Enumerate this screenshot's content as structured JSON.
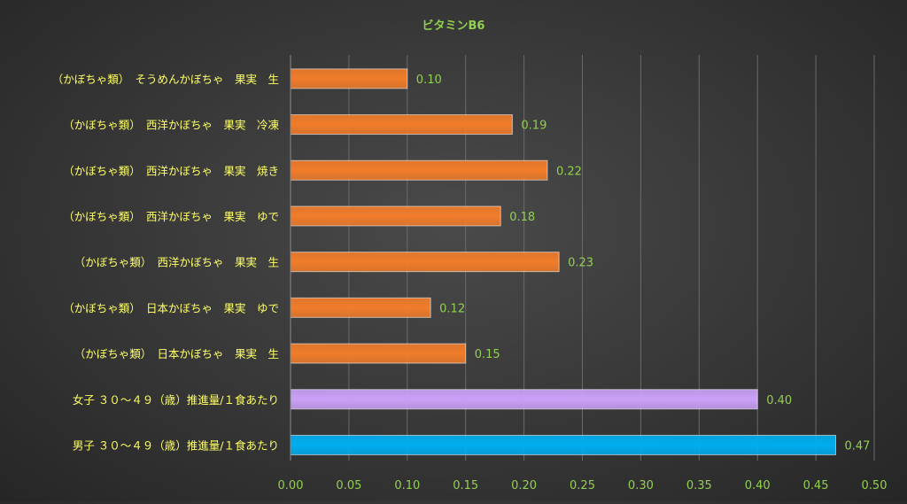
{
  "chart_data": {
    "type": "bar",
    "orientation": "horizontal",
    "title": "ビタミンB6",
    "categories": [
      "（かぼちゃ類）　そうめんかぼちゃ　果実　生",
      "（かぼちゃ類）　西洋かぼちゃ　果実　冷凍",
      "（かぼちゃ類）　西洋かぼちゃ　果実　焼き",
      "（かぼちゃ類）　西洋かぼちゃ　果実　ゆで",
      "（かぼちゃ類）　西洋かぼちゃ　果実　生",
      "（かぼちゃ類）　日本かぼちゃ　果実　ゆで",
      "（かぼちゃ類）　日本かぼちゃ　果実　生",
      "女子 ３０～４９（歳）推進量/１食あたり",
      "男子 ３０～４９（歳）推進量/１食あたり"
    ],
    "values": [
      0.1,
      0.19,
      0.22,
      0.18,
      0.23,
      0.12,
      0.15,
      0.4,
      0.467
    ],
    "value_labels": [
      "0.10",
      "0.19",
      "0.22",
      "0.18",
      "0.23",
      "0.12",
      "0.15",
      "0.40",
      "0.47"
    ],
    "bar_colors": [
      "#f07c2a",
      "#f07c2a",
      "#f07c2a",
      "#f07c2a",
      "#f07c2a",
      "#f07c2a",
      "#f07c2a",
      "#c9a0f7",
      "#00aeef"
    ],
    "x_ticks": [
      "0.00",
      "0.05",
      "0.10",
      "0.15",
      "0.20",
      "0.25",
      "0.30",
      "0.35",
      "0.40",
      "0.45",
      "0.50"
    ],
    "xlim": [
      0,
      0.5
    ],
    "grid": "vertical",
    "legend": "none",
    "colors": {
      "title": "#92d050",
      "category_label": "#ffff66",
      "tick_label": "#92d050",
      "value_label": "#92d050",
      "grid": "#6a6a6a"
    }
  }
}
